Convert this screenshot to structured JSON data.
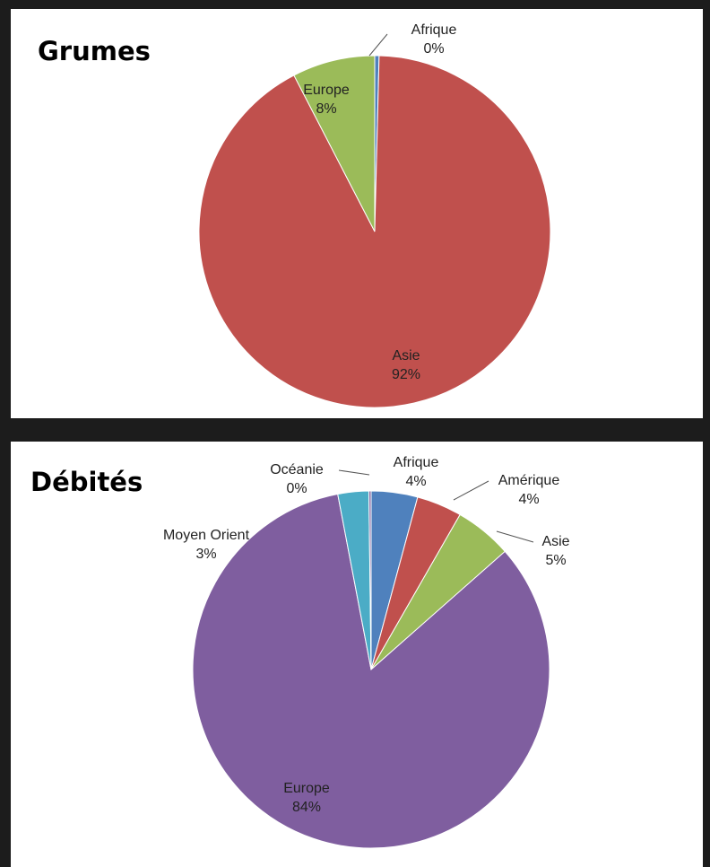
{
  "chart_data": [
    {
      "type": "pie",
      "title": "Grumes",
      "start_angle": 0,
      "slices": [
        {
          "name": "Afrique",
          "value": 0.4,
          "label_percent": "0%",
          "color": "#4f81bd"
        },
        {
          "name": "Asie",
          "value": 92,
          "label_percent": "92%",
          "color": "#c0504d"
        },
        {
          "name": "Europe",
          "value": 7.6,
          "label_percent": "8%",
          "color": "#9bbb59"
        }
      ]
    },
    {
      "type": "pie",
      "title": "Débités",
      "start_angle": 0,
      "slices": [
        {
          "name": "Afrique",
          "value": 4.2,
          "label_percent": "4%",
          "color": "#4f81bd"
        },
        {
          "name": "Amérique",
          "value": 4.1,
          "label_percent": "4%",
          "color": "#c0504d"
        },
        {
          "name": "Asie",
          "value": 5.2,
          "label_percent": "5%",
          "color": "#9bbb59"
        },
        {
          "name": "Europe",
          "value": 83.5,
          "label_percent": "84%",
          "color": "#7f5e9f"
        },
        {
          "name": "Moyen Orient",
          "value": 2.8,
          "label_percent": "3%",
          "color": "#4bacc6"
        },
        {
          "name": "Océanie",
          "value": 0.2,
          "label_percent": "0%",
          "color": "#8064a2"
        }
      ]
    }
  ]
}
